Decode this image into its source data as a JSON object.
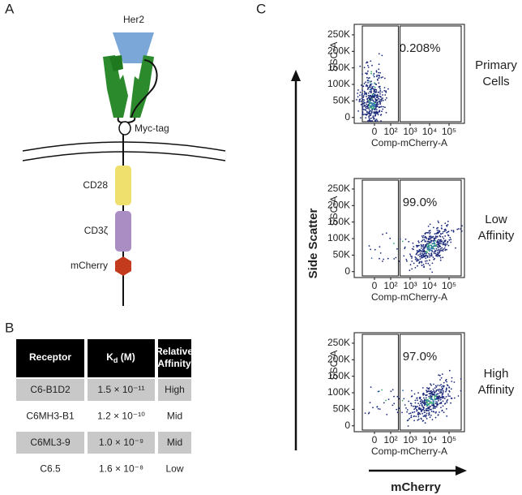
{
  "panels": {
    "a": "A",
    "b": "B",
    "c": "C"
  },
  "diagram": {
    "her2": "Her2",
    "myc_tag": "Myc-tag",
    "cd28": "CD28",
    "cd3z": "CD3ζ",
    "mcherry": "mCherry"
  },
  "table": {
    "header": {
      "receptor": "Receptor",
      "kd": {
        "symbol": "K",
        "subscript": "d",
        "unit": " (M)"
      },
      "affinity": [
        "Relative",
        "Affinity"
      ]
    },
    "rows": [
      [
        "C6-B1D2",
        "1.5 × 10⁻¹¹",
        "High"
      ],
      [
        "C6MH3-B1",
        "1.2 × 10⁻¹⁰",
        "Mid"
      ],
      [
        "C6ML3-9",
        "1.0 × 10⁻⁹",
        "Mid"
      ],
      [
        "C6.5",
        "1.6 × 10⁻⁸",
        "Low"
      ]
    ]
  },
  "flow": {
    "y_axis_title": "Side Scatter",
    "x_axis_title": "mCherry",
    "y_label": "SSC-A",
    "x_label": "Comp-mCherry-A",
    "ylim": [
      -8000,
      262144
    ],
    "yticks": [
      {
        "value": 0,
        "label": "0"
      },
      {
        "value": 50000,
        "label": "50K"
      },
      {
        "value": 100000,
        "label": "100K"
      },
      {
        "value": 150000,
        "label": "150K"
      },
      {
        "value": 200000,
        "label": "200K"
      },
      {
        "value": 250000,
        "label": "250K"
      }
    ],
    "xticks": [
      {
        "value": 0,
        "label": "0"
      },
      {
        "value": 100,
        "label": "10²"
      },
      {
        "value": 1000,
        "label": "10³"
      },
      {
        "value": 10000,
        "label": "10⁴"
      },
      {
        "value": 100000,
        "label": "10⁵"
      }
    ],
    "gate_x": 300,
    "plots": [
      {
        "condition": [
          "Primary",
          "Cells"
        ],
        "gate_percent": "0.208%"
      },
      {
        "condition": [
          "Low",
          "Affinity"
        ],
        "gate_percent": "99.0%"
      },
      {
        "condition": [
          "High",
          "Affinity"
        ],
        "gate_percent": "97.0%"
      }
    ]
  }
}
